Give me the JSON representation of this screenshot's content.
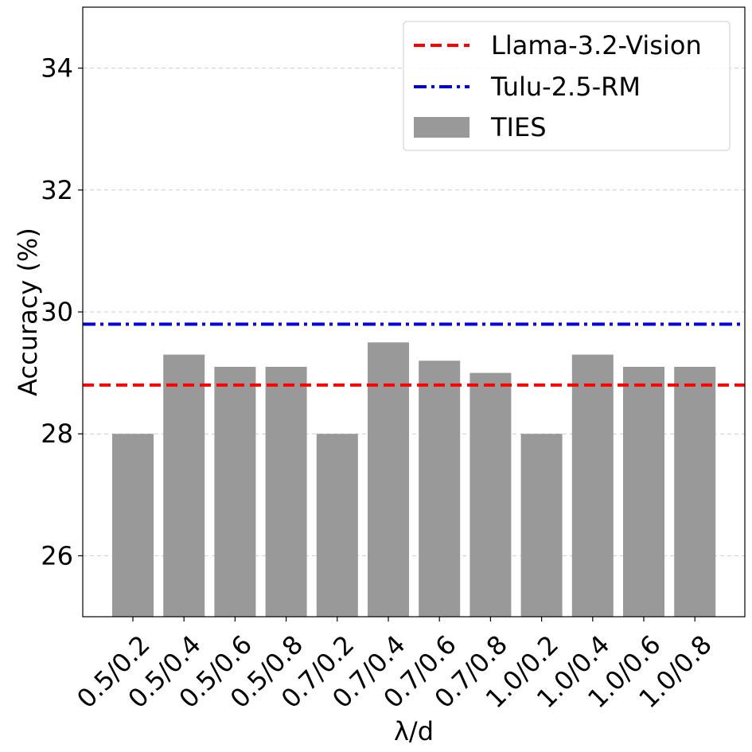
{
  "chart_data": {
    "type": "bar",
    "categories": [
      "0.5/0.2",
      "0.5/0.4",
      "0.5/0.6",
      "0.5/0.8",
      "0.7/0.2",
      "0.7/0.4",
      "0.7/0.6",
      "0.7/0.8",
      "1.0/0.2",
      "1.0/0.4",
      "1.0/0.6",
      "1.0/0.8"
    ],
    "series": [
      {
        "name": "TIES",
        "values": [
          28.0,
          29.3,
          29.1,
          29.1,
          28.0,
          29.5,
          29.2,
          29.0,
          28.0,
          29.3,
          29.1,
          29.1
        ],
        "color": "#999999"
      }
    ],
    "reference_lines": [
      {
        "name": "Llama-3.2-Vision",
        "value": 28.8,
        "color": "#ff0000",
        "style": "dashed"
      },
      {
        "name": "Tulu-2.5-RM",
        "value": 29.8,
        "color": "#0000dd",
        "style": "dashdot"
      }
    ],
    "legend": {
      "position": "top-right",
      "entries": [
        "Llama-3.2-Vision",
        "Tulu-2.5-RM",
        "TIES"
      ]
    },
    "title": "",
    "xlabel": "λ/d",
    "ylabel": "Accuracy (%)",
    "ylim": [
      25,
      35
    ],
    "yticks": [
      26,
      28,
      30,
      32,
      34
    ],
    "grid": "y-dashed"
  }
}
